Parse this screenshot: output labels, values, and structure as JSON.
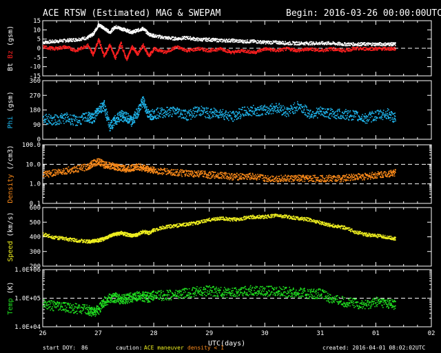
{
  "header": {
    "title": "ACE RTSW (Estimated) MAG & SWEPAM",
    "begin": "Begin: 2016-03-26 00:00:00UTC"
  },
  "footer": {
    "start_doy_label": "start DOY:",
    "start_doy_value": "86",
    "caution_label": "caution:",
    "caution_maneuver": "ACE maneuver",
    "caution_density": "density < 1",
    "created": "created: 2016-04-01 08:02:02UTC",
    "xlabel": "UTC(days)"
  },
  "colors": {
    "bt": "#ffffff",
    "bz": "#ff2020",
    "phi": "#20b8f0",
    "density": "#ff8c1a",
    "speed": "#f0f020",
    "temp": "#20e020",
    "axes": "#ffffff",
    "background": "#000000"
  },
  "chart_data": [
    {
      "type": "scatter",
      "panel": "mag",
      "ylabel_parts": [
        "Bt",
        "Bz",
        "(gsm)"
      ],
      "ylim": [
        -15,
        15
      ],
      "yticks": [
        "15",
        "10",
        "5",
        "0",
        "-5",
        "-10",
        "-15"
      ],
      "ytick_values": [
        15,
        10,
        5,
        0,
        -5,
        -10,
        -15
      ],
      "reference_lines": [
        0
      ],
      "series": [
        {
          "name": "Bt",
          "values": [
            [
              26.0,
              3.5
            ],
            [
              26.2,
              4
            ],
            [
              26.4,
              4.5
            ],
            [
              26.6,
              5
            ],
            [
              26.8,
              6
            ],
            [
              26.9,
              8
            ],
            [
              27.0,
              13
            ],
            [
              27.1,
              11
            ],
            [
              27.2,
              9
            ],
            [
              27.3,
              12
            ],
            [
              27.4,
              11
            ],
            [
              27.5,
              10
            ],
            [
              27.6,
              9
            ],
            [
              27.7,
              10
            ],
            [
              27.8,
              11
            ],
            [
              27.9,
              8
            ],
            [
              28.0,
              7
            ],
            [
              28.2,
              6
            ],
            [
              28.4,
              5.5
            ],
            [
              28.6,
              6
            ],
            [
              28.8,
              5
            ],
            [
              29.0,
              5
            ],
            [
              29.2,
              4.5
            ],
            [
              29.4,
              4.5
            ],
            [
              29.6,
              4
            ],
            [
              29.8,
              4
            ],
            [
              30.0,
              3.5
            ],
            [
              30.2,
              3.5
            ],
            [
              30.4,
              3
            ],
            [
              30.6,
              3
            ],
            [
              30.8,
              3
            ],
            [
              31.0,
              3
            ],
            [
              31.2,
              3
            ],
            [
              31.4,
              2.5
            ],
            [
              31.6,
              2.5
            ],
            [
              31.8,
              2.5
            ],
            [
              32.0,
              2.5
            ],
            [
              32.2,
              2.5
            ],
            [
              32.35,
              2.5
            ]
          ]
        },
        {
          "name": "Bz",
          "values": [
            [
              26.0,
              1
            ],
            [
              26.2,
              0
            ],
            [
              26.4,
              1
            ],
            [
              26.6,
              -1
            ],
            [
              26.8,
              2
            ],
            [
              26.9,
              -3
            ],
            [
              27.0,
              5
            ],
            [
              27.1,
              -4
            ],
            [
              27.2,
              2
            ],
            [
              27.3,
              -5
            ],
            [
              27.4,
              3
            ],
            [
              27.5,
              -6
            ],
            [
              27.6,
              1
            ],
            [
              27.7,
              -3
            ],
            [
              27.8,
              2
            ],
            [
              27.9,
              -4
            ],
            [
              28.0,
              0
            ],
            [
              28.2,
              -2
            ],
            [
              28.4,
              1
            ],
            [
              28.6,
              -1
            ],
            [
              28.8,
              0
            ],
            [
              29.0,
              -1
            ],
            [
              29.2,
              0
            ],
            [
              29.4,
              -2
            ],
            [
              29.6,
              -1
            ],
            [
              29.8,
              -2
            ],
            [
              30.0,
              0
            ],
            [
              30.2,
              -1
            ],
            [
              30.4,
              0
            ],
            [
              30.6,
              -1
            ],
            [
              30.8,
              0
            ],
            [
              31.0,
              -1
            ],
            [
              31.2,
              0
            ],
            [
              31.4,
              -1
            ],
            [
              31.6,
              0
            ],
            [
              31.8,
              0
            ],
            [
              32.0,
              0
            ],
            [
              32.2,
              0
            ],
            [
              32.35,
              0
            ]
          ]
        }
      ]
    },
    {
      "type": "scatter",
      "panel": "phi",
      "ylabel_parts": [
        "Phi",
        "(gsm)"
      ],
      "ylim": [
        0,
        360
      ],
      "yticks": [
        "360",
        "270",
        "180",
        "90",
        "0"
      ],
      "ytick_values": [
        360,
        270,
        180,
        90,
        0
      ],
      "series": [
        {
          "name": "Phi",
          "values": [
            [
              26.0,
              130
            ],
            [
              26.2,
              120
            ],
            [
              26.4,
              135
            ],
            [
              26.6,
              115
            ],
            [
              26.8,
              140
            ],
            [
              26.9,
              130
            ],
            [
              27.0,
              190
            ],
            [
              27.1,
              210
            ],
            [
              27.2,
              80
            ],
            [
              27.3,
              120
            ],
            [
              27.4,
              150
            ],
            [
              27.5,
              135
            ],
            [
              27.6,
              110
            ],
            [
              27.7,
              170
            ],
            [
              27.8,
              240
            ],
            [
              27.9,
              150
            ],
            [
              28.0,
              160
            ],
            [
              28.2,
              170
            ],
            [
              28.4,
              175
            ],
            [
              28.6,
              150
            ],
            [
              28.8,
              180
            ],
            [
              29.0,
              160
            ],
            [
              29.2,
              165
            ],
            [
              29.4,
              140
            ],
            [
              29.6,
              170
            ],
            [
              29.8,
              180
            ],
            [
              30.0,
              180
            ],
            [
              30.2,
              200
            ],
            [
              30.4,
              170
            ],
            [
              30.6,
              210
            ],
            [
              30.8,
              160
            ],
            [
              31.0,
              170
            ],
            [
              31.2,
              160
            ],
            [
              31.4,
              155
            ],
            [
              31.6,
              150
            ],
            [
              31.8,
              130
            ],
            [
              32.0,
              150
            ],
            [
              32.2,
              160
            ],
            [
              32.35,
              130
            ]
          ]
        }
      ]
    },
    {
      "type": "scatter",
      "panel": "density",
      "ylabel_parts": [
        "Density",
        "(/cm3)"
      ],
      "ylim": [
        0.1,
        100
      ],
      "yscale": "log",
      "yticks": [
        "100.0",
        "10.0",
        "1.0",
        "0.1"
      ],
      "ytick_values": [
        100,
        10,
        1,
        0.1
      ],
      "reference_lines": [
        10,
        1
      ],
      "series": [
        {
          "name": "Density",
          "values": [
            [
              26.0,
              3
            ],
            [
              26.2,
              4
            ],
            [
              26.4,
              5
            ],
            [
              26.6,
              6
            ],
            [
              26.8,
              8
            ],
            [
              26.9,
              12
            ],
            [
              27.0,
              15
            ],
            [
              27.1,
              10
            ],
            [
              27.2,
              9
            ],
            [
              27.3,
              8
            ],
            [
              27.4,
              7
            ],
            [
              27.5,
              6
            ],
            [
              27.6,
              7
            ],
            [
              27.7,
              8
            ],
            [
              27.8,
              7
            ],
            [
              27.9,
              6
            ],
            [
              28.0,
              5
            ],
            [
              28.2,
              4.5
            ],
            [
              28.4,
              4
            ],
            [
              28.6,
              3.5
            ],
            [
              28.8,
              3.5
            ],
            [
              29.0,
              3
            ],
            [
              29.2,
              3
            ],
            [
              29.4,
              2.5
            ],
            [
              29.6,
              2.5
            ],
            [
              29.8,
              2.5
            ],
            [
              30.0,
              2
            ],
            [
              30.2,
              2
            ],
            [
              30.4,
              2
            ],
            [
              30.6,
              2
            ],
            [
              30.8,
              2
            ],
            [
              31.0,
              2
            ],
            [
              31.2,
              2
            ],
            [
              31.4,
              2
            ],
            [
              31.6,
              2.5
            ],
            [
              31.8,
              2.5
            ],
            [
              32.0,
              3
            ],
            [
              32.2,
              3.5
            ],
            [
              32.35,
              4
            ]
          ]
        }
      ]
    },
    {
      "type": "scatter",
      "panel": "speed",
      "ylabel_parts": [
        "Speed",
        "(km/s)"
      ],
      "ylim": [
        200,
        600
      ],
      "yticks": [
        "600",
        "500",
        "400",
        "300",
        "200"
      ],
      "ytick_values": [
        600,
        500,
        400,
        300,
        200
      ],
      "series": [
        {
          "name": "Speed",
          "values": [
            [
              26.0,
              420
            ],
            [
              26.2,
              400
            ],
            [
              26.4,
              390
            ],
            [
              26.6,
              380
            ],
            [
              26.8,
              370
            ],
            [
              26.9,
              375
            ],
            [
              27.0,
              380
            ],
            [
              27.1,
              390
            ],
            [
              27.2,
              410
            ],
            [
              27.3,
              420
            ],
            [
              27.4,
              430
            ],
            [
              27.5,
              420
            ],
            [
              27.6,
              410
            ],
            [
              27.7,
              420
            ],
            [
              27.8,
              440
            ],
            [
              27.9,
              430
            ],
            [
              28.0,
              450
            ],
            [
              28.2,
              470
            ],
            [
              28.4,
              480
            ],
            [
              28.6,
              490
            ],
            [
              28.8,
              500
            ],
            [
              29.0,
              520
            ],
            [
              29.2,
              530
            ],
            [
              29.4,
              520
            ],
            [
              29.6,
              530
            ],
            [
              29.8,
              540
            ],
            [
              30.0,
              540
            ],
            [
              30.2,
              550
            ],
            [
              30.4,
              540
            ],
            [
              30.6,
              530
            ],
            [
              30.8,
              520
            ],
            [
              31.0,
              500
            ],
            [
              31.2,
              480
            ],
            [
              31.4,
              470
            ],
            [
              31.6,
              440
            ],
            [
              31.8,
              420
            ],
            [
              32.0,
              410
            ],
            [
              32.2,
              400
            ],
            [
              32.35,
              390
            ]
          ]
        }
      ]
    },
    {
      "type": "scatter",
      "panel": "temp",
      "ylabel_parts": [
        "Temp",
        "(K)"
      ],
      "ylim": [
        10000,
        1000000
      ],
      "yscale": "log",
      "yticks": [
        "1.0E+06",
        "1.0E+05",
        "1.0E+04"
      ],
      "ytick_values": [
        1000000,
        100000,
        10000
      ],
      "reference_lines": [
        100000
      ],
      "series": [
        {
          "name": "Temp",
          "values": [
            [
              26.0,
              70000
            ],
            [
              26.2,
              55000
            ],
            [
              26.4,
              50000
            ],
            [
              26.6,
              45000
            ],
            [
              26.8,
              40000
            ],
            [
              26.9,
              35000
            ],
            [
              27.0,
              40000
            ],
            [
              27.1,
              80000
            ],
            [
              27.2,
              100000
            ],
            [
              27.3,
              110000
            ],
            [
              27.4,
              90000
            ],
            [
              27.5,
              100000
            ],
            [
              27.6,
              110000
            ],
            [
              27.7,
              120000
            ],
            [
              27.8,
              120000
            ],
            [
              27.9,
              110000
            ],
            [
              28.0,
              130000
            ],
            [
              28.2,
              130000
            ],
            [
              28.4,
              140000
            ],
            [
              28.6,
              160000
            ],
            [
              28.8,
              180000
            ],
            [
              29.0,
              190000
            ],
            [
              29.2,
              170000
            ],
            [
              29.4,
              160000
            ],
            [
              29.6,
              180000
            ],
            [
              29.8,
              200000
            ],
            [
              30.0,
              180000
            ],
            [
              30.2,
              190000
            ],
            [
              30.4,
              170000
            ],
            [
              30.6,
              160000
            ],
            [
              30.8,
              150000
            ],
            [
              31.0,
              150000
            ],
            [
              31.2,
              100000
            ],
            [
              31.4,
              80000
            ],
            [
              31.6,
              70000
            ],
            [
              31.8,
              60000
            ],
            [
              32.0,
              80000
            ],
            [
              32.2,
              70000
            ],
            [
              32.35,
              60000
            ]
          ]
        }
      ]
    }
  ],
  "xaxis": {
    "ticks": [
      "26",
      "27",
      "28",
      "29",
      "30",
      "31",
      "01",
      "02"
    ],
    "tick_values": [
      26,
      27,
      28,
      29,
      30,
      31,
      32,
      33
    ],
    "xlim": [
      26,
      33
    ]
  }
}
